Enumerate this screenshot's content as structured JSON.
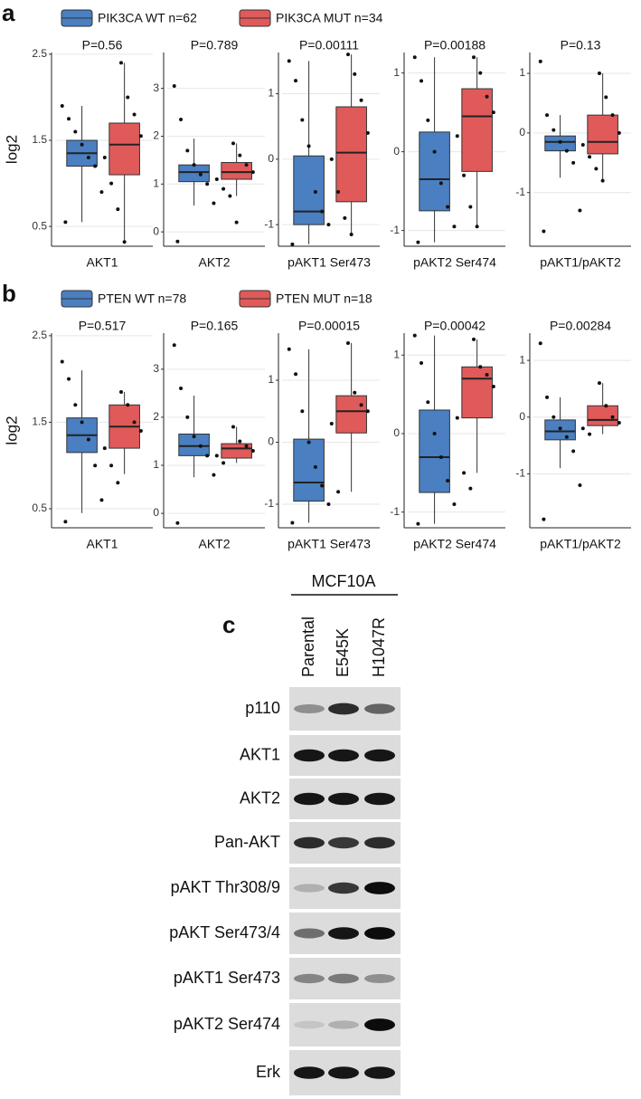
{
  "chart_data": [
    {
      "type": "box",
      "title": "P=0.56",
      "xlabel": "AKT1",
      "ylabel": "log2",
      "ylim": [
        0.27,
        2.52
      ],
      "yticks": [
        0.5,
        1.5,
        2.5
      ],
      "grid": true,
      "groups": [
        {
          "whislo": 0.55,
          "q1": 1.2,
          "med": 1.35,
          "q3": 1.5,
          "whishi": 1.9,
          "points": [
            1.9,
            1.75,
            1.6,
            1.45,
            1.3,
            1.2,
            0.9,
            0.55
          ]
        },
        {
          "whislo": 0.3,
          "q1": 1.1,
          "med": 1.45,
          "q3": 1.7,
          "whishi": 2.4,
          "points": [
            2.4,
            2.0,
            1.8,
            1.55,
            1.3,
            1.0,
            0.7,
            0.32
          ]
        }
      ]
    },
    {
      "type": "box",
      "title": "P=0.789",
      "xlabel": "AKT2",
      "ylim": [
        -0.3,
        3.75
      ],
      "yticks": [
        0,
        1,
        2,
        3
      ],
      "grid": true,
      "groups": [
        {
          "whislo": 0.55,
          "q1": 1.05,
          "med": 1.25,
          "q3": 1.4,
          "whishi": 1.95,
          "points": [
            3.05,
            2.35,
            1.7,
            1.4,
            1.2,
            1.0,
            0.6,
            -0.2
          ]
        },
        {
          "whislo": 0.75,
          "q1": 1.1,
          "med": 1.25,
          "q3": 1.45,
          "whishi": 1.85,
          "points": [
            1.85,
            1.6,
            1.4,
            1.25,
            1.1,
            0.9,
            0.75,
            0.2
          ]
        }
      ]
    },
    {
      "type": "box",
      "title": "P=0.00111",
      "xlabel": "pAKT1 Ser473",
      "ylim": [
        -1.33,
        1.63
      ],
      "yticks": [
        -1,
        0,
        1
      ],
      "grid": true,
      "groups": [
        {
          "whislo": -1.3,
          "q1": -1.0,
          "med": -0.8,
          "q3": 0.05,
          "whishi": 1.5,
          "points": [
            1.5,
            1.2,
            0.6,
            0.2,
            -0.5,
            -0.8,
            -1.0,
            -1.3
          ]
        },
        {
          "whislo": -1.15,
          "q1": -0.65,
          "med": 0.1,
          "q3": 0.8,
          "whishi": 1.6,
          "points": [
            1.6,
            1.3,
            0.9,
            0.4,
            0.0,
            -0.5,
            -0.9,
            -1.15
          ]
        }
      ]
    },
    {
      "type": "box",
      "title": "P=0.00188",
      "xlabel": "pAKT2 Ser474",
      "ylim": [
        -1.2,
        1.26
      ],
      "yticks": [
        -1,
        0,
        1
      ],
      "grid": true,
      "groups": [
        {
          "whislo": -1.15,
          "q1": -0.75,
          "med": -0.35,
          "q3": 0.25,
          "whishi": 1.2,
          "points": [
            1.2,
            0.9,
            0.4,
            0.0,
            -0.4,
            -0.7,
            -0.95,
            -1.15
          ]
        },
        {
          "whislo": -0.95,
          "q1": -0.25,
          "med": 0.45,
          "q3": 0.8,
          "whishi": 1.2,
          "points": [
            1.2,
            1.0,
            0.7,
            0.5,
            0.2,
            -0.3,
            -0.7,
            -0.95
          ]
        }
      ]
    },
    {
      "type": "box",
      "title": "P=0.13",
      "xlabel": "pAKT1/pAKT2",
      "ylim": [
        -1.9,
        1.35
      ],
      "yticks": [
        -1,
        0,
        1
      ],
      "grid": true,
      "groups": [
        {
          "whislo": -0.75,
          "q1": -0.3,
          "med": -0.15,
          "q3": -0.05,
          "whishi": 0.3,
          "points": [
            1.2,
            0.3,
            0.05,
            -0.15,
            -0.3,
            -0.5,
            -1.3,
            -1.65
          ]
        },
        {
          "whislo": -0.8,
          "q1": -0.35,
          "med": -0.15,
          "q3": 0.3,
          "whishi": 1.0,
          "points": [
            1.0,
            0.6,
            0.3,
            0.0,
            -0.2,
            -0.4,
            -0.6,
            -0.8
          ]
        }
      ]
    },
    {
      "type": "box",
      "title": "P=0.517",
      "xlabel": "AKT1",
      "ylabel": "log2",
      "ylim": [
        0.28,
        2.53
      ],
      "yticks": [
        0.5,
        1.5,
        2.5
      ],
      "grid": true,
      "groups": [
        {
          "whislo": 0.45,
          "q1": 1.15,
          "med": 1.35,
          "q3": 1.55,
          "whishi": 2.1,
          "points": [
            2.2,
            2.0,
            1.7,
            1.5,
            1.3,
            1.0,
            0.6,
            0.35
          ]
        },
        {
          "whislo": 0.9,
          "q1": 1.2,
          "med": 1.45,
          "q3": 1.7,
          "whishi": 1.85,
          "points": [
            1.85,
            1.7,
            1.5,
            1.4,
            1.2,
            1.0,
            0.8
          ]
        }
      ]
    },
    {
      "type": "box",
      "title": "P=0.165",
      "xlabel": "AKT2",
      "ylim": [
        -0.3,
        3.75
      ],
      "yticks": [
        0,
        1,
        2,
        3
      ],
      "grid": true,
      "groups": [
        {
          "whislo": 0.75,
          "q1": 1.2,
          "med": 1.4,
          "q3": 1.65,
          "whishi": 2.45,
          "points": [
            3.5,
            2.6,
            2.0,
            1.6,
            1.4,
            1.2,
            0.8,
            -0.2
          ]
        },
        {
          "whislo": 1.05,
          "q1": 1.15,
          "med": 1.35,
          "q3": 1.45,
          "whishi": 1.8,
          "points": [
            1.8,
            1.5,
            1.4,
            1.3,
            1.2,
            1.05
          ]
        }
      ]
    },
    {
      "type": "box",
      "title": "P=0.00015",
      "xlabel": "pAKT1 Ser473",
      "ylim": [
        -1.38,
        1.76
      ],
      "yticks": [
        -1,
        0,
        1
      ],
      "grid": true,
      "groups": [
        {
          "whislo": -1.3,
          "q1": -0.95,
          "med": -0.65,
          "q3": 0.05,
          "whishi": 1.5,
          "points": [
            1.5,
            1.1,
            0.5,
            0.0,
            -0.4,
            -0.7,
            -1.0,
            -1.3
          ]
        },
        {
          "whislo": -0.8,
          "q1": 0.15,
          "med": 0.5,
          "q3": 0.75,
          "whishi": 1.6,
          "points": [
            1.6,
            0.8,
            0.6,
            0.5,
            0.3,
            -0.8
          ]
        }
      ]
    },
    {
      "type": "box",
      "title": "P=0.00042",
      "xlabel": "pAKT2 Ser474",
      "ylim": [
        -1.2,
        1.28
      ],
      "yticks": [
        -1,
        0,
        1
      ],
      "grid": true,
      "groups": [
        {
          "whislo": -1.15,
          "q1": -0.75,
          "med": -0.3,
          "q3": 0.3,
          "whishi": 1.25,
          "points": [
            1.25,
            0.9,
            0.4,
            0.0,
            -0.3,
            -0.6,
            -0.9,
            -1.15
          ]
        },
        {
          "whislo": -0.5,
          "q1": 0.2,
          "med": 0.7,
          "q3": 0.85,
          "whishi": 1.2,
          "points": [
            1.2,
            0.85,
            0.75,
            0.6,
            0.2,
            -0.5,
            -0.7
          ]
        }
      ]
    },
    {
      "type": "box",
      "title": "P=0.00284",
      "xlabel": "pAKT1/pAKT2",
      "ylim": [
        -1.95,
        1.48
      ],
      "yticks": [
        -1,
        0,
        1
      ],
      "grid": true,
      "groups": [
        {
          "whislo": -0.9,
          "q1": -0.4,
          "med": -0.25,
          "q3": -0.05,
          "whishi": 0.35,
          "points": [
            1.3,
            0.35,
            0.0,
            -0.2,
            -0.35,
            -0.6,
            -1.2,
            -1.8
          ]
        },
        {
          "whislo": -0.3,
          "q1": -0.15,
          "med": -0.05,
          "q3": 0.2,
          "whishi": 0.6,
          "points": [
            0.6,
            0.2,
            0.0,
            -0.1,
            -0.2,
            -0.3
          ]
        }
      ]
    }
  ],
  "panels": [
    {
      "label": "a",
      "legend": [
        {
          "name": "PIK3CA WT n=62",
          "color": "#4a7fc1"
        },
        {
          "name": "PIK3CA MUT n=34",
          "color": "#e05a5a"
        }
      ]
    },
    {
      "label": "b",
      "legend": [
        {
          "name": "PTEN WT n=78",
          "color": "#4a7fc1"
        },
        {
          "name": "PTEN MUT n=18",
          "color": "#e05a5a"
        }
      ]
    }
  ],
  "blot": {
    "label": "c",
    "cell_line": "MCF10A",
    "lanes": [
      "Parental",
      "E545K",
      "H1047R"
    ],
    "rows": [
      {
        "label": "p110",
        "bands": [
          0.35,
          0.8,
          0.55
        ]
      },
      {
        "label": "AKT1",
        "bands": [
          0.9,
          0.9,
          0.9
        ]
      },
      {
        "label": "AKT2",
        "bands": [
          0.9,
          0.9,
          0.9
        ]
      },
      {
        "label": "Pan-AKT",
        "bands": [
          0.8,
          0.75,
          0.8
        ]
      },
      {
        "label": "pAKT Thr308/9",
        "bands": [
          0.2,
          0.75,
          0.95
        ]
      },
      {
        "label": "pAKT Ser473/4",
        "bands": [
          0.5,
          0.9,
          0.95
        ]
      },
      {
        "label": "pAKT1 Ser473",
        "bands": [
          0.4,
          0.45,
          0.35
        ]
      },
      {
        "label": "pAKT2 Ser474",
        "bands": [
          0.1,
          0.2,
          0.95
        ]
      },
      {
        "label": "Erk",
        "bands": [
          0.9,
          0.9,
          0.9
        ]
      }
    ]
  }
}
